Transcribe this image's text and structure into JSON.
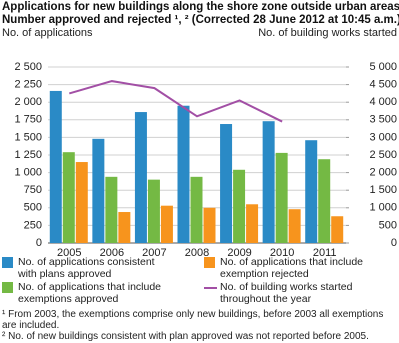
{
  "chart_data": {
    "type": "bar",
    "title": [
      "Applications for new buildings along the shore zone outside urban areas.",
      "Number approved and rejected ¹, ² (Corrected 28 June 2012 at 10:45 a.m.)"
    ],
    "y_label": "No. of applications",
    "y2_label": "No. of building works started",
    "categories": [
      "2005",
      "2006",
      "2007",
      "2008",
      "2009",
      "2010",
      "2011"
    ],
    "series": [
      {
        "name": "No. of applications consistent with plans approved",
        "color": "#2a8ac6",
        "values": [
          2160,
          1480,
          1860,
          1950,
          1690,
          1730,
          1460
        ]
      },
      {
        "name": "No. of applications that include exemptions approved",
        "color": "#74b944",
        "values": [
          1290,
          940,
          900,
          940,
          1040,
          1280,
          1190
        ]
      },
      {
        "name": "No. of applications that include exemption rejected",
        "color": "#f7941d",
        "values": [
          1150,
          440,
          530,
          500,
          550,
          480,
          380
        ]
      },
      {
        "name": "No. of building works started throughout the year",
        "color": "#a24fa5",
        "type": "line",
        "axis": "y2",
        "values": [
          4250,
          4600,
          4400,
          3600,
          4050,
          3450,
          null
        ]
      }
    ],
    "ylim": [
      0,
      2500
    ],
    "yticks": [
      0,
      250,
      500,
      750,
      {
        "value": 1000,
        "label": "1 000"
      },
      {
        "value": 1250,
        "label": "1 250"
      },
      {
        "value": 1500,
        "label": "1 500"
      },
      {
        "value": 1750,
        "label": "1 750"
      },
      {
        "value": 2000,
        "label": "2 000"
      },
      {
        "value": 2250,
        "label": "2 250"
      },
      {
        "value": 2500,
        "label": "2 500"
      }
    ],
    "y2lim": [
      0,
      5000
    ],
    "y2ticks": [
      0,
      500,
      {
        "value": 1000,
        "label": "1 000"
      },
      {
        "value": 1500,
        "label": "1 500"
      },
      {
        "value": 2000,
        "label": "2 000"
      },
      {
        "value": 2500,
        "label": "2 500"
      },
      {
        "value": 3000,
        "label": "3 000"
      },
      {
        "value": 3500,
        "label": "3 500"
      },
      {
        "value": 4000,
        "label": "4 000"
      },
      {
        "value": 4500,
        "label": "4 500"
      },
      {
        "value": 5000,
        "label": "5 000"
      }
    ],
    "grid": true,
    "footnotes": [
      "¹ From 2003, the exemptions comprise only new buildings, before 2003 all exemptions are included.",
      "² No. of new buildings consistent with plan approved was not reported before 2005."
    ]
  }
}
